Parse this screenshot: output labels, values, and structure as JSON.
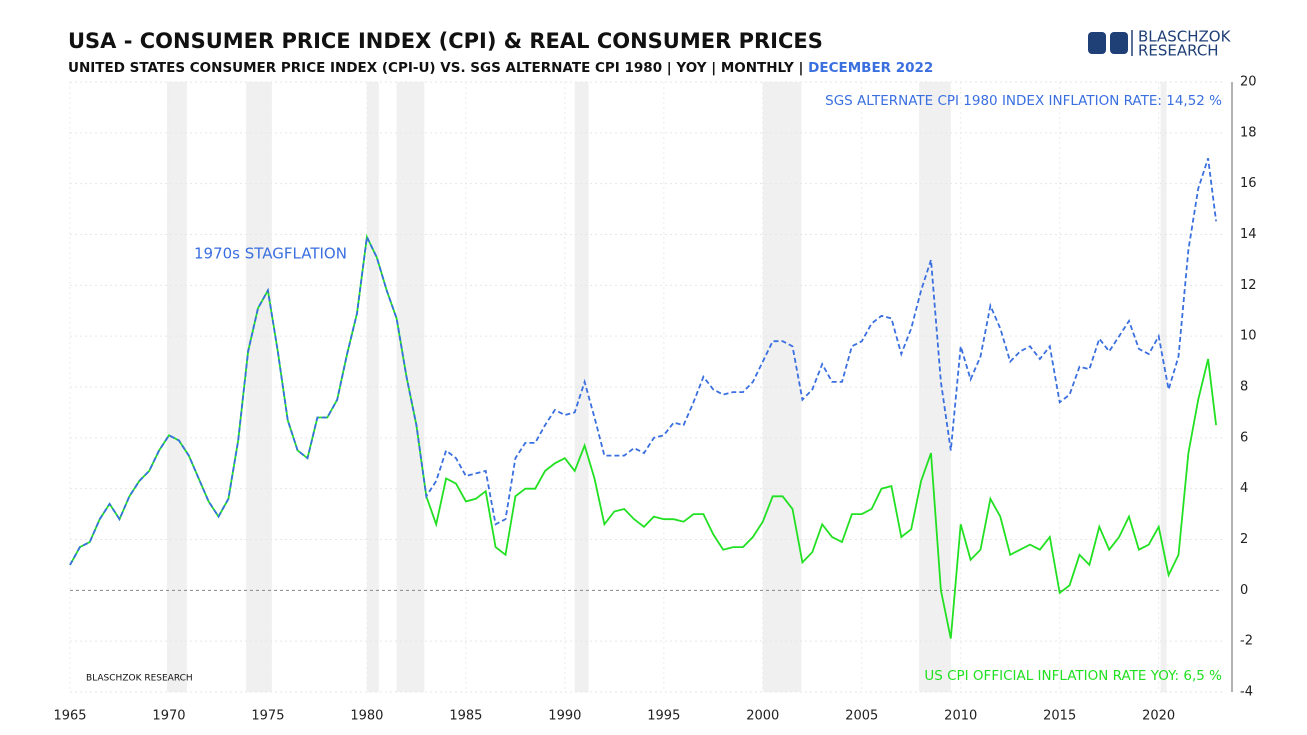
{
  "chart_data": {
    "type": "line",
    "title": "USA - CONSUMER PRICE INDEX (CPI) & REAL CONSUMER PRICES",
    "subtitle": "UNITED STATES CONSUMER PRICE INDEX (CPI-U) VS. SGS ALTERNATE CPI 1980  | YOY | MONTHLY | ",
    "subtitle_date": "DECEMBER 2022",
    "logo": [
      "BLASCHZOK",
      "RESEARCH"
    ],
    "watermark": "BLASCHZOK   RESEARCH",
    "annotations": {
      "stagflation": "1970s STAGFLATION",
      "sgs": "SGS ALTERNATE CPI 1980 INDEX INFLATION RATE: 14,52 %",
      "cpi": "US CPI OFFICIAL INFLATION RATE YOY: 6,5 %"
    },
    "xlim": [
      1965,
      2023.2
    ],
    "xticks": [
      1965,
      1970,
      1975,
      1980,
      1985,
      1990,
      1995,
      2000,
      2005,
      2010,
      2015,
      2020
    ],
    "ylim": [
      -4,
      20
    ],
    "yticks": [
      -4,
      -2,
      0,
      2,
      4,
      6,
      8,
      10,
      12,
      14,
      16,
      18,
      20
    ],
    "grid": true,
    "recessions": [
      [
        1969.9,
        1970.9
      ],
      [
        1973.9,
        1975.2
      ],
      [
        1980.0,
        1980.6
      ],
      [
        1981.5,
        1982.9
      ],
      [
        1990.5,
        1991.2
      ],
      [
        2000.0,
        2001.95
      ],
      [
        2007.9,
        2009.5
      ],
      [
        2020.1,
        2020.4
      ]
    ],
    "x": [
      1965.0,
      1965.5,
      1966.0,
      1966.5,
      1967.0,
      1967.5,
      1968.0,
      1968.5,
      1969.0,
      1969.5,
      1970.0,
      1970.5,
      1971.0,
      1971.5,
      1972.0,
      1972.5,
      1973.0,
      1973.5,
      1974.0,
      1974.5,
      1975.0,
      1975.5,
      1976.0,
      1976.5,
      1977.0,
      1977.5,
      1978.0,
      1978.5,
      1979.0,
      1979.5,
      1980.0,
      1980.5,
      1981.0,
      1981.5,
      1982.0,
      1982.5,
      1983.0,
      1983.5,
      1984.0,
      1984.5,
      1985.0,
      1985.5,
      1986.0,
      1986.5,
      1987.0,
      1987.5,
      1988.0,
      1988.5,
      1989.0,
      1989.5,
      1990.0,
      1990.5,
      1991.0,
      1991.5,
      1992.0,
      1992.5,
      1993.0,
      1993.5,
      1994.0,
      1994.5,
      1995.0,
      1995.5,
      1996.0,
      1996.5,
      1997.0,
      1997.5,
      1998.0,
      1998.5,
      1999.0,
      1999.5,
      2000.0,
      2000.5,
      2001.0,
      2001.5,
      2002.0,
      2002.5,
      2003.0,
      2003.5,
      2004.0,
      2004.5,
      2005.0,
      2005.5,
      2006.0,
      2006.5,
      2007.0,
      2007.5,
      2008.0,
      2008.5,
      2009.0,
      2009.5,
      2010.0,
      2010.5,
      2011.0,
      2011.5,
      2012.0,
      2012.5,
      2013.0,
      2013.5,
      2014.0,
      2014.5,
      2015.0,
      2015.5,
      2016.0,
      2016.5,
      2017.0,
      2017.5,
      2018.0,
      2018.5,
      2019.0,
      2019.5,
      2020.0,
      2020.5,
      2021.0,
      2021.5,
      2022.0,
      2022.5,
      2022.9
    ],
    "series": [
      {
        "name": "US CPI OFFICIAL",
        "color": "#22e022",
        "dashed": false,
        "values": [
          1.0,
          1.7,
          1.9,
          2.8,
          3.4,
          2.8,
          3.7,
          4.3,
          4.7,
          5.5,
          6.1,
          5.9,
          5.3,
          4.4,
          3.5,
          2.9,
          3.6,
          5.9,
          9.4,
          11.1,
          11.8,
          9.4,
          6.7,
          5.5,
          5.2,
          6.8,
          6.8,
          7.5,
          9.3,
          10.9,
          13.9,
          13.1,
          11.8,
          10.7,
          8.4,
          6.5,
          3.7,
          2.6,
          4.4,
          4.2,
          3.5,
          3.6,
          3.9,
          1.7,
          1.4,
          3.7,
          4.0,
          4.0,
          4.7,
          5.0,
          5.2,
          4.7,
          5.7,
          4.4,
          2.6,
          3.1,
          3.2,
          2.8,
          2.5,
          2.9,
          2.8,
          2.8,
          2.7,
          3.0,
          3.0,
          2.2,
          1.6,
          1.7,
          1.7,
          2.1,
          2.7,
          3.7,
          3.7,
          3.2,
          1.1,
          1.5,
          2.6,
          2.1,
          1.9,
          3.0,
          3.0,
          3.2,
          4.0,
          4.1,
          2.1,
          2.4,
          4.3,
          5.4,
          0.0,
          -1.9,
          2.6,
          1.2,
          1.6,
          3.6,
          2.9,
          1.4,
          1.6,
          1.8,
          1.6,
          2.1,
          -0.1,
          0.2,
          1.4,
          1.0,
          2.5,
          1.6,
          2.1,
          2.9,
          1.6,
          1.8,
          2.5,
          0.6,
          1.4,
          5.4,
          7.5,
          9.1,
          6.5
        ]
      },
      {
        "name": "SGS ALTERNATE CPI 1980",
        "color": "#3a6fe0",
        "dashed": true,
        "values": [
          1.0,
          1.7,
          1.9,
          2.8,
          3.4,
          2.8,
          3.7,
          4.3,
          4.7,
          5.5,
          6.1,
          5.9,
          5.3,
          4.4,
          3.5,
          2.9,
          3.6,
          5.9,
          9.4,
          11.1,
          11.8,
          9.4,
          6.7,
          5.5,
          5.2,
          6.8,
          6.8,
          7.5,
          9.3,
          10.9,
          13.9,
          13.1,
          11.8,
          10.7,
          8.4,
          6.5,
          3.7,
          4.3,
          5.5,
          5.2,
          4.5,
          4.6,
          4.7,
          2.6,
          2.8,
          5.2,
          5.8,
          5.8,
          6.5,
          7.1,
          6.9,
          7.0,
          8.2,
          6.8,
          5.3,
          5.3,
          5.3,
          5.6,
          5.4,
          6.0,
          6.1,
          6.6,
          6.5,
          7.4,
          8.4,
          7.9,
          7.7,
          7.8,
          7.8,
          8.2,
          9.0,
          9.8,
          9.8,
          9.6,
          7.5,
          7.9,
          8.9,
          8.2,
          8.2,
          9.6,
          9.8,
          10.5,
          10.8,
          10.7,
          9.3,
          10.3,
          11.8,
          13.0,
          8.2,
          5.5,
          9.6,
          8.3,
          9.2,
          11.2,
          10.3,
          9.0,
          9.4,
          9.6,
          9.1,
          9.6,
          7.4,
          7.7,
          8.8,
          8.7,
          9.9,
          9.4,
          10.0,
          10.6,
          9.5,
          9.3,
          10.0,
          7.9,
          9.2,
          13.4,
          15.8,
          17.0,
          14.52
        ]
      }
    ]
  }
}
